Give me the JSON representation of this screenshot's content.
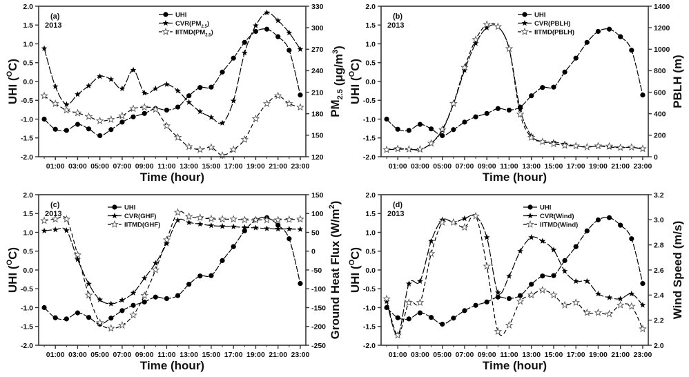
{
  "chart_data": [
    {
      "type": "line",
      "panel_label": "(a)",
      "year_label": "2013",
      "xlabel": "Time (hour)",
      "ylabel": "UHI (°C)",
      "ylabel_parts": {
        "main": "UHI (",
        "sup": "O",
        "tail": "C)"
      },
      "y2label": "PM2.5 (μg/m3)",
      "y2label_parts": {
        "main": "PM",
        "sub": "2.5",
        "mid": " (μg/m",
        "sup": "3",
        "tail": ")"
      },
      "x": [
        0,
        1,
        2,
        3,
        4,
        5,
        6,
        7,
        8,
        9,
        10,
        11,
        12,
        13,
        14,
        15,
        16,
        17,
        18,
        19,
        20,
        21,
        22,
        23
      ],
      "xlim": [
        -0.5,
        23.5
      ],
      "xticks": [
        1,
        3,
        5,
        7,
        9,
        11,
        13,
        15,
        17,
        19,
        21,
        23
      ],
      "xtick_labels": [
        "01:00",
        "03:00",
        "05:00",
        "07:00",
        "09:00",
        "11:00",
        "13:00",
        "15:00",
        "17:00",
        "19:00",
        "21:00",
        "23:00"
      ],
      "ylim": [
        -2.0,
        2.0
      ],
      "yticks": [
        "2.0",
        "1.5",
        "1.0",
        "0.5",
        "0.0",
        "-0.5",
        "-1.0",
        "-1.5",
        "-2.0"
      ],
      "y2lim": [
        120,
        330
      ],
      "y2ticks": [
        "330",
        "300",
        "270",
        "240",
        "210",
        "180",
        "150",
        "120"
      ],
      "legend_position": "top-center",
      "series": [
        {
          "name": "UHI",
          "axis": "left",
          "marker": "filled-circle",
          "values": [
            -1.0,
            -1.27,
            -1.3,
            -1.14,
            -1.26,
            -1.44,
            -1.28,
            -1.08,
            -0.94,
            -0.85,
            -0.72,
            -0.76,
            -0.68,
            -0.38,
            -0.16,
            -0.15,
            0.25,
            0.62,
            1.04,
            1.33,
            1.39,
            1.19,
            0.83,
            -0.36
          ]
        },
        {
          "name": "CVR(PM2.5)",
          "legend_parts": {
            "main": "CVR(PM",
            "sub": "2.5",
            "tail": ")"
          },
          "axis": "right",
          "marker": "filled-star",
          "values": [
            271,
            218,
            193,
            207,
            219,
            232,
            228,
            215,
            241,
            209,
            215,
            221,
            212,
            196,
            183,
            175,
            167,
            198,
            265,
            303,
            321,
            310,
            293,
            270
          ]
        },
        {
          "name": "IITMD(PM2.5)",
          "legend_parts": {
            "main": "IITMD(PM",
            "sub": "2.5",
            "tail": ")"
          },
          "axis": "right",
          "marker": "open-star",
          "values": [
            205,
            194,
            185,
            181,
            176,
            170,
            172,
            177,
            187,
            189,
            186,
            163,
            147,
            134,
            130,
            133,
            122,
            130,
            144,
            173,
            194,
            205,
            194,
            189
          ]
        }
      ]
    },
    {
      "type": "line",
      "panel_label": "(b)",
      "year_label": "2013",
      "xlabel": "Time (hour)",
      "ylabel": "UHI (°C)",
      "ylabel_parts": {
        "main": "UHI (",
        "sup": "O",
        "tail": "C)"
      },
      "y2label": "PBLH (m)",
      "y2label_parts": {
        "main": "PBLH (m)",
        "sub": "",
        "mid": "",
        "sup": "",
        "tail": ""
      },
      "x": [
        0,
        1,
        2,
        3,
        4,
        5,
        6,
        7,
        8,
        9,
        10,
        11,
        12,
        13,
        14,
        15,
        16,
        17,
        18,
        19,
        20,
        21,
        22,
        23
      ],
      "xlim": [
        -0.5,
        23.5
      ],
      "xticks": [
        1,
        3,
        5,
        7,
        9,
        11,
        13,
        15,
        17,
        19,
        21,
        23
      ],
      "xtick_labels": [
        "01:00",
        "03:00",
        "05:00",
        "07:00",
        "09:00",
        "11:00",
        "13:00",
        "15:00",
        "17:00",
        "19:00",
        "21:00",
        "23:00"
      ],
      "ylim": [
        -2.0,
        2.0
      ],
      "yticks": [
        "2.0",
        "1.5",
        "1.0",
        "0.5",
        "0.0",
        "-0.5",
        "-1.0",
        "-1.5",
        "-2.0"
      ],
      "y2lim": [
        0,
        1400
      ],
      "y2ticks": [
        "1400",
        "1200",
        "1000",
        "800",
        "600",
        "400",
        "200",
        "0"
      ],
      "legend_position": "top-center",
      "series": [
        {
          "name": "UHI",
          "axis": "left",
          "marker": "filled-circle",
          "values": [
            -1.0,
            -1.27,
            -1.3,
            -1.14,
            -1.26,
            -1.44,
            -1.28,
            -1.08,
            -0.94,
            -0.85,
            -0.72,
            -0.76,
            -0.68,
            -0.38,
            -0.16,
            -0.15,
            0.25,
            0.62,
            1.04,
            1.33,
            1.39,
            1.19,
            0.83,
            -0.36
          ]
        },
        {
          "name": "CVR(PBLH)",
          "legend_parts": {
            "main": "CVR(PBLH)",
            "sub": "",
            "tail": ""
          },
          "axis": "right",
          "marker": "filled-star",
          "values": [
            65,
            70,
            70,
            65,
            125,
            245,
            490,
            805,
            1055,
            1200,
            1210,
            1005,
            440,
            195,
            140,
            135,
            120,
            100,
            90,
            100,
            90,
            85,
            88,
            70
          ]
        },
        {
          "name": "IITMD(PBLH)",
          "legend_parts": {
            "main": "IITMD(PBLH)",
            "sub": "",
            "tail": ""
          },
          "axis": "right",
          "marker": "open-star",
          "values": [
            65,
            75,
            70,
            70,
            125,
            255,
            495,
            830,
            1090,
            1230,
            1210,
            1005,
            395,
            180,
            140,
            120,
            105,
            100,
            90,
            100,
            98,
            85,
            88,
            75
          ]
        }
      ]
    },
    {
      "type": "line",
      "panel_label": "(c)",
      "year_label": "2013",
      "xlabel": "Time (hour)",
      "ylabel": "UHI (°C)",
      "ylabel_parts": {
        "main": "UHI (",
        "sup": "O",
        "tail": "C)"
      },
      "y2label": "Ground Heat Flux (W/m2)",
      "y2label_parts": {
        "main": "Ground Heat Flux (W/m",
        "sub": "",
        "mid": "",
        "sup": "2",
        "tail": ")"
      },
      "x": [
        0,
        1,
        2,
        3,
        4,
        5,
        6,
        7,
        8,
        9,
        10,
        11,
        12,
        13,
        14,
        15,
        16,
        17,
        18,
        19,
        20,
        21,
        22,
        23
      ],
      "xlim": [
        -0.5,
        23.5
      ],
      "xticks": [
        1,
        3,
        5,
        7,
        9,
        11,
        13,
        15,
        17,
        19,
        21,
        23
      ],
      "xtick_labels": [
        "01:00",
        "03:00",
        "05:00",
        "07:00",
        "09:00",
        "11:00",
        "13:00",
        "15:00",
        "17:00",
        "19:00",
        "21:00",
        "23:00"
      ],
      "ylim": [
        -2.0,
        2.0
      ],
      "yticks": [
        "2.0",
        "1.5",
        "1.0",
        "0.5",
        "0.0",
        "-0.5",
        "-1.0",
        "-1.5",
        "-2.0"
      ],
      "y2lim": [
        -250,
        150
      ],
      "y2ticks": [
        "150",
        "100",
        "50",
        "0",
        "-50",
        "-100",
        "-150",
        "-200",
        "-250"
      ],
      "legend_position": "top-center",
      "series": [
        {
          "name": "UHI",
          "axis": "left",
          "marker": "filled-circle",
          "values": [
            -1.0,
            -1.27,
            -1.3,
            -1.14,
            -1.26,
            -1.44,
            -1.28,
            -1.08,
            -0.94,
            -0.85,
            -0.72,
            -0.76,
            -0.68,
            -0.38,
            -0.16,
            -0.15,
            0.25,
            0.62,
            1.04,
            1.33,
            1.39,
            1.19,
            0.83,
            -0.36
          ]
        },
        {
          "name": "CVR(GHF)",
          "legend_parts": {
            "main": "CVR(GHF)",
            "sub": "",
            "tail": ""
          },
          "axis": "right",
          "marker": "filled-star",
          "values": [
            54,
            57,
            55,
            -22,
            -87,
            -129,
            -140,
            -130,
            -111,
            -72,
            -32,
            20,
            82,
            76,
            72,
            68,
            66,
            65,
            63,
            62,
            60,
            59,
            59,
            58
          ]
        },
        {
          "name": "IITMD(GHF)",
          "legend_parts": {
            "main": "IITMD(GHF)",
            "sub": "",
            "tail": ""
          },
          "axis": "right",
          "marker": "open-star",
          "values": [
            81,
            85,
            85,
            -10,
            -117,
            -190,
            -205,
            -197,
            -170,
            -118,
            -50,
            30,
            103,
            92,
            89,
            86,
            85,
            85,
            83,
            83,
            83,
            83,
            84,
            85
          ]
        }
      ]
    },
    {
      "type": "line",
      "panel_label": "(d)",
      "year_label": "2013",
      "xlabel": "Time (hour)",
      "ylabel": "UHI (°C)",
      "ylabel_parts": {
        "main": "UHI (",
        "sup": "O",
        "tail": "C)"
      },
      "y2label": "Wind Speed (m/s)",
      "y2label_parts": {
        "main": "Wind Speed (m/s)",
        "sub": "",
        "mid": "",
        "sup": "",
        "tail": ""
      },
      "x": [
        0,
        1,
        2,
        3,
        4,
        5,
        6,
        7,
        8,
        9,
        10,
        11,
        12,
        13,
        14,
        15,
        16,
        17,
        18,
        19,
        20,
        21,
        22,
        23
      ],
      "xlim": [
        -0.5,
        23.5
      ],
      "xticks": [
        1,
        3,
        5,
        7,
        9,
        11,
        13,
        15,
        17,
        19,
        21,
        23
      ],
      "xtick_labels": [
        "01:00",
        "03:00",
        "05:00",
        "07:00",
        "09:00",
        "11:00",
        "13:00",
        "15:00",
        "17:00",
        "19:00",
        "21:00",
        "23:00"
      ],
      "ylim": [
        -2.0,
        2.0
      ],
      "yticks": [
        "2.0",
        "1.5",
        "1.0",
        "0.5",
        "0.0",
        "-0.5",
        "-1.0",
        "-1.5",
        "-2.0"
      ],
      "y2lim": [
        2.0,
        3.2
      ],
      "y2ticks": [
        "3.2",
        "3.0",
        "2.8",
        "2.6",
        "2.4",
        "2.2",
        "2.0"
      ],
      "legend_position": "top-right",
      "series": [
        {
          "name": "UHI",
          "axis": "left",
          "marker": "filled-circle",
          "values": [
            -1.0,
            -1.27,
            -1.3,
            -1.14,
            -1.26,
            -1.44,
            -1.28,
            -1.08,
            -0.94,
            -0.85,
            -0.72,
            -0.76,
            -0.68,
            -0.38,
            -0.16,
            -0.15,
            0.25,
            0.62,
            1.04,
            1.33,
            1.39,
            1.19,
            0.83,
            -0.36
          ]
        },
        {
          "name": "CVR(Wind)",
          "legend_parts": {
            "main": "CVR(Wind)",
            "sub": "",
            "tail": ""
          },
          "axis": "right",
          "marker": "filled-star",
          "values": [
            2.35,
            2.08,
            2.49,
            2.51,
            2.83,
            3.0,
            2.98,
            3.01,
            3.03,
            2.86,
            2.42,
            2.55,
            2.75,
            2.86,
            2.83,
            2.76,
            2.59,
            2.51,
            2.51,
            2.41,
            2.38,
            2.37,
            2.41,
            2.32
          ]
        },
        {
          "name": "IITMD(Wind)",
          "legend_parts": {
            "main": "IITMD(Wind)",
            "sub": "",
            "tail": ""
          },
          "axis": "right",
          "marker": "open-star",
          "values": [
            2.37,
            2.08,
            2.34,
            2.34,
            2.73,
            2.98,
            2.98,
            2.94,
            3.03,
            2.63,
            2.11,
            2.16,
            2.35,
            2.4,
            2.44,
            2.4,
            2.32,
            2.34,
            2.26,
            2.26,
            2.25,
            2.32,
            2.31,
            2.13
          ]
        }
      ]
    }
  ]
}
